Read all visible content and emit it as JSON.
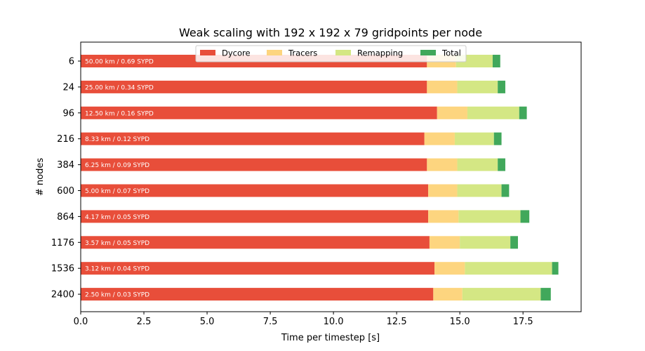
{
  "chart_data": {
    "type": "bar",
    "orientation": "horizontal",
    "stacked": true,
    "title": "Weak scaling with 192 x 192 x 79 gridpoints per node",
    "xlabel": "Time per timestep [s]",
    "ylabel": "# nodes",
    "xlim": [
      0,
      19.8
    ],
    "xticks": [
      "0.0",
      "2.5",
      "5.0",
      "7.5",
      "10.0",
      "12.5",
      "15.0",
      "17.5"
    ],
    "xtick_values": [
      0,
      2.5,
      5,
      7.5,
      10,
      12.5,
      15,
      17.5
    ],
    "categories": [
      "6",
      "24",
      "96",
      "216",
      "384",
      "600",
      "864",
      "1176",
      "1536",
      "2400"
    ],
    "bar_labels": [
      "50.00 km  /  0.69 SYPD",
      "25.00 km  /  0.34 SYPD",
      "12.50 km  /  0.16 SYPD",
      "8.33 km  /  0.12 SYPD",
      "6.25 km  /  0.09 SYPD",
      "5.00 km  /  0.07 SYPD",
      "4.17 km  /  0.05 SYPD",
      "3.57 km  /  0.05 SYPD",
      "3.12 km  /  0.04 SYPD",
      "2.50 km  /  0.03 SYPD"
    ],
    "series": [
      {
        "name": "Dycore",
        "color": "#e84e3a",
        "values": [
          13.7,
          13.7,
          14.1,
          13.6,
          13.7,
          13.75,
          13.75,
          13.8,
          14.0,
          13.95
        ]
      },
      {
        "name": "Tracers",
        "color": "#fdd57f",
        "values": [
          1.15,
          1.2,
          1.2,
          1.2,
          1.2,
          1.15,
          1.2,
          1.2,
          1.2,
          1.15
        ]
      },
      {
        "name": "Remapping",
        "color": "#d4e784",
        "values": [
          1.45,
          1.6,
          2.05,
          1.55,
          1.6,
          1.75,
          2.45,
          2.0,
          3.45,
          3.1
        ]
      },
      {
        "name": "Total",
        "color": "#41a85b",
        "values": [
          0.3,
          0.3,
          0.3,
          0.3,
          0.3,
          0.3,
          0.35,
          0.3,
          0.25,
          0.4
        ]
      }
    ],
    "legend_position": "top-center",
    "grid": false
  }
}
